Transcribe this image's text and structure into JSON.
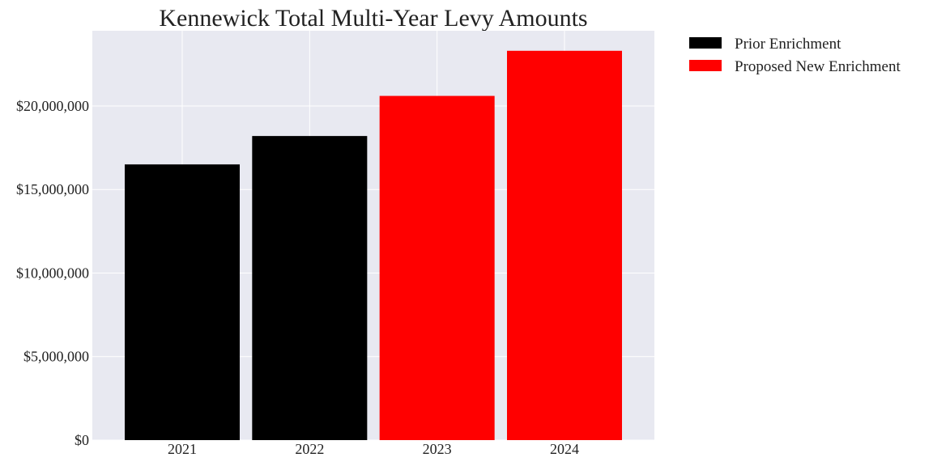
{
  "chart_data": {
    "type": "bar",
    "title": "Kennewick Total Multi-Year Levy Amounts",
    "categories": [
      "2021",
      "2022",
      "2023",
      "2024"
    ],
    "values": [
      16500000,
      18200000,
      20600000,
      23300000
    ],
    "bar_series": [
      "Prior Enrichment",
      "Prior Enrichment",
      "Proposed New Enrichment",
      "Proposed New Enrichment"
    ],
    "legend": [
      {
        "label": "Prior Enrichment",
        "color": "#000000"
      },
      {
        "label": "Proposed New Enrichment",
        "color": "#ff0000"
      }
    ],
    "legend_placement": "outside-top-right",
    "ylim": [
      0,
      24500000
    ],
    "yticks": [
      0,
      5000000,
      10000000,
      15000000,
      20000000
    ],
    "ytick_labels": [
      "$0",
      "$5,000,000",
      "$10,000,000",
      "$15,000,000",
      "$20,000,000"
    ],
    "xlabel": "",
    "ylabel": "",
    "grid": true,
    "colors": {
      "plot_background": "#e8e9f1",
      "grid": "#ffffff"
    }
  }
}
